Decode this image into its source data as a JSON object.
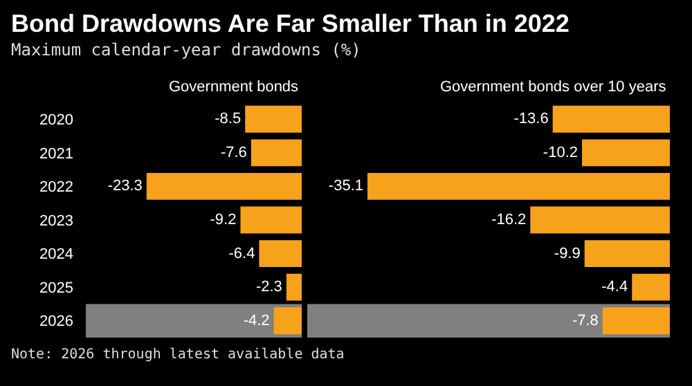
{
  "chart_data": [
    {
      "type": "bar",
      "orientation": "horizontal",
      "title": "Bond Drawdowns Are Far Smaller Than in 2022",
      "subtitle": "Maximum calendar-year drawdowns (%)",
      "annotations": [
        "Note: 2026 through latest available data"
      ],
      "categories": [
        "2020",
        "2021",
        "2022",
        "2023",
        "2024",
        "2025",
        "2026"
      ],
      "series": [
        {
          "name": "Government bonds",
          "color": "#f7a21b",
          "values": [
            -8.5,
            -7.6,
            -23.3,
            -9.2,
            -6.4,
            -2.3,
            -4.2
          ]
        }
      ],
      "data_labels": true,
      "tick_labels": "y",
      "bands": [
        {
          "axis": "y",
          "from": "2026",
          "to": "2026",
          "color": "#808080"
        }
      ]
    },
    {
      "type": "bar",
      "orientation": "horizontal",
      "categories": [
        "2020",
        "2021",
        "2022",
        "2023",
        "2024",
        "2025",
        "2026"
      ],
      "series": [
        {
          "name": "Government bonds over 10 years",
          "color": "#f7a21b",
          "values": [
            -13.6,
            -10.2,
            -35.1,
            -16.2,
            -9.9,
            -4.4,
            -7.8
          ]
        }
      ],
      "data_labels": true,
      "tick_labels": false,
      "bands": [
        {
          "axis": "y",
          "from": "2026",
          "to": "2026",
          "color": "#808080"
        }
      ]
    }
  ]
}
